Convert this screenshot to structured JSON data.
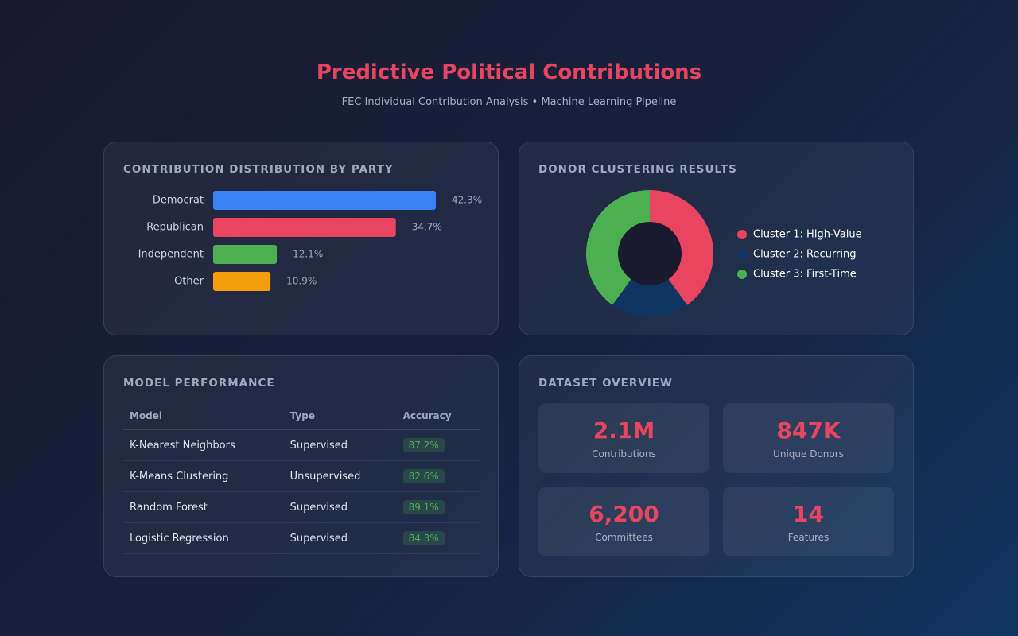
{
  "header": {
    "title": "Predictive Political Contributions",
    "subtitle": "FEC Individual Contribution Analysis • Machine Learning Pipeline"
  },
  "chart_data": [
    {
      "type": "bar",
      "title": "CONTRIBUTION DISTRIBUTION BY PARTY",
      "categories": [
        "Democrat",
        "Republican",
        "Independent",
        "Other"
      ],
      "values": [
        42.3,
        34.7,
        12.1,
        10.9
      ],
      "value_labels": [
        "42.3%",
        "34.7%",
        "12.1%",
        "10.9%"
      ],
      "colors": [
        "#3b82f6",
        "#e94560",
        "#4caf50",
        "#f59e0b"
      ],
      "orientation": "horizontal"
    },
    {
      "type": "donut",
      "title": "DONOR CLUSTERING RESULTS",
      "categories": [
        "Cluster 1: High-Value",
        "Cluster 2: Recurring",
        "Cluster 3: First-Time"
      ],
      "values": [
        40,
        20,
        40
      ],
      "colors": [
        "#e94560",
        "#0f3460",
        "#4caf50"
      ]
    }
  ],
  "table": {
    "title": "MODEL PERFORMANCE",
    "columns": [
      "Model",
      "Type",
      "Accuracy"
    ],
    "rows": [
      [
        "K-Nearest Neighbors",
        "Supervised",
        "87.2%"
      ],
      [
        "K-Means Clustering",
        "Unsupervised",
        "82.6%"
      ],
      [
        "Random Forest",
        "Supervised",
        "89.1%"
      ],
      [
        "Logistic Regression",
        "Supervised",
        "84.3%"
      ]
    ]
  },
  "stats": {
    "title": "DATASET OVERVIEW",
    "items": [
      {
        "value": "2.1M",
        "label": "Contributions"
      },
      {
        "value": "847K",
        "label": "Unique Donors"
      },
      {
        "value": "6,200",
        "label": "Committees"
      },
      {
        "value": "14",
        "label": "Features"
      }
    ]
  }
}
